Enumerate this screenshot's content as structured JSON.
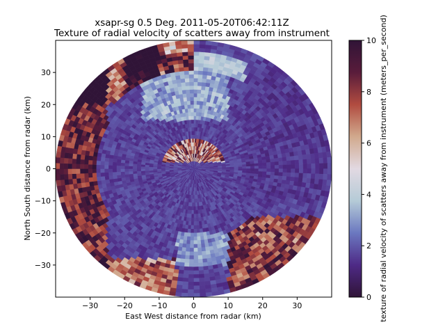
{
  "chart_data": {
    "type": "heatmap",
    "title_line1": "xsapr-sg 0.5 Deg. 2011-05-20T06:42:11Z",
    "title_line2": "Texture of radial velocity of scatters away from instrument",
    "xlabel": "East West distance from radar (km)",
    "ylabel": "North South distance from radar (km)",
    "xlim": [
      -40,
      40
    ],
    "ylim": [
      -40,
      40
    ],
    "xticks": [
      -30,
      -20,
      -10,
      0,
      10,
      20,
      30
    ],
    "yticks": [
      -30,
      -20,
      -10,
      0,
      10,
      20,
      30
    ],
    "max_range_km": 40,
    "colorbar": {
      "label": "texture of radial velocity of scatters away from instrument (meters_per_second)",
      "min": 0,
      "max": 10,
      "ticks": [
        0,
        2,
        4,
        6,
        8,
        10
      ],
      "colormap": "twilight_shifted",
      "stops": [
        "#301437",
        "#4e2a86",
        "#6b78c0",
        "#b5cbd7",
        "#e2d9e2",
        "#d1a98d",
        "#b14c40",
        "#591c3b",
        "#301437"
      ]
    }
  }
}
